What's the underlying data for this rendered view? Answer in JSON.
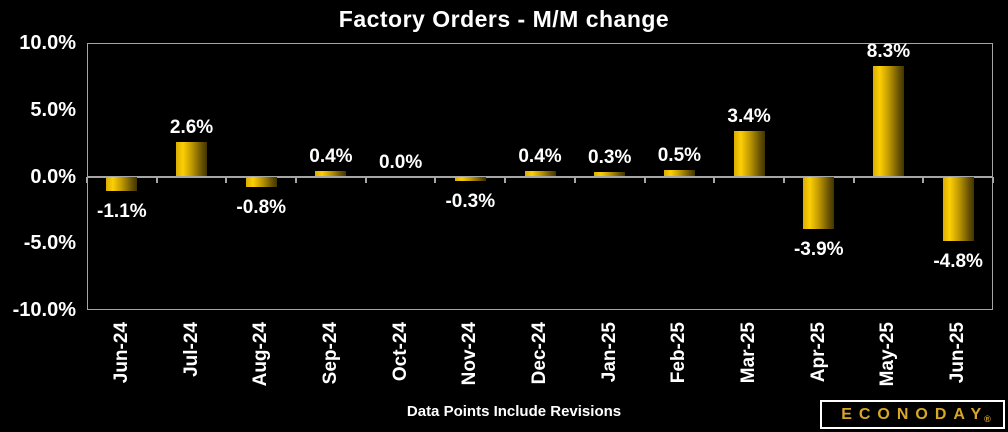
{
  "chart_data": {
    "type": "bar",
    "title": "Factory Orders - M/M change",
    "categories": [
      "Jun-24",
      "Jul-24",
      "Aug-24",
      "Sep-24",
      "Oct-24",
      "Nov-24",
      "Dec-24",
      "Jan-25",
      "Feb-25",
      "Mar-25",
      "Apr-25",
      "May-25",
      "Jun-25"
    ],
    "values": [
      -1.1,
      2.6,
      -0.8,
      0.4,
      0.0,
      -0.3,
      0.4,
      0.3,
      0.5,
      3.4,
      -3.9,
      8.3,
      -4.8
    ],
    "value_labels": [
      "-1.1%",
      "2.6%",
      "-0.8%",
      "0.4%",
      "0.0%",
      "-0.3%",
      "0.4%",
      "0.3%",
      "0.5%",
      "3.4%",
      "-3.9%",
      "8.3%",
      "-4.8%"
    ],
    "xlabel": "",
    "ylabel": "",
    "ylim": [
      -10,
      10
    ],
    "yticks": [
      {
        "value": 10,
        "label": "10.0%"
      },
      {
        "value": 5,
        "label": "5.0%"
      },
      {
        "value": 0,
        "label": "0.0%"
      },
      {
        "value": -5,
        "label": "-5.0%"
      },
      {
        "value": -10,
        "label": "-10.0%"
      }
    ],
    "grid": "off",
    "legend": "none",
    "footnote": "Data Points Include Revisions",
    "style": {
      "background_color": "#000000",
      "axis_color": "#a6a6a6",
      "text_color": "#ffffff",
      "bar_gradient": [
        {
          "color": "#d9ad03",
          "pos": 0
        },
        {
          "color": "#fccf04",
          "pos": 22
        },
        {
          "color": "#c29b02",
          "pos": 50
        },
        {
          "color": "#6b5502",
          "pos": 82
        },
        {
          "color": "#413400",
          "pos": 100
        }
      ]
    }
  },
  "branding": {
    "logo_text": "ECONODAY",
    "registered_mark": "®",
    "logo_color": "#d9a728"
  }
}
